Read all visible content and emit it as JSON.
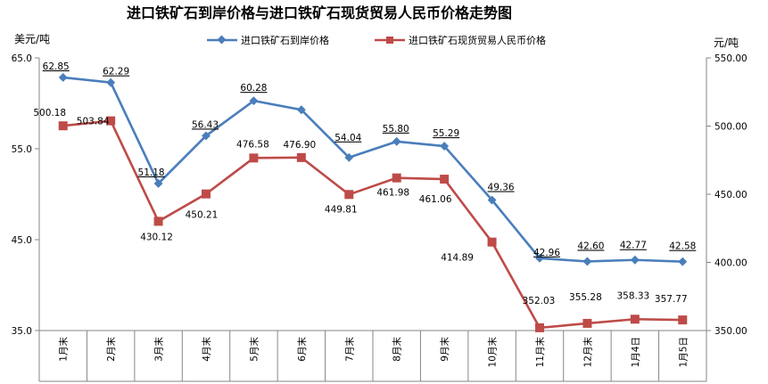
{
  "chart_data": {
    "type": "line",
    "title": "进口铁矿石到岸价格与进口铁矿石现货贸易人民币价格走势图",
    "y_left_label": "美元/吨",
    "y_right_label": "元/吨",
    "categories": [
      "1月末",
      "2月末",
      "3月末",
      "4月末",
      "5月末",
      "6月末",
      "7月末",
      "8月末",
      "9月末",
      "10月末",
      "11月末",
      "12月末",
      "1月4日",
      "1月5日"
    ],
    "y_left": {
      "min": 35,
      "max": 65,
      "ticks": [
        "35.0",
        "45.0",
        "55.0",
        "65.0"
      ]
    },
    "y_right": {
      "min": 350,
      "max": 550,
      "ticks": [
        "350.00",
        "400.00",
        "450.00",
        "500.00",
        "550.00"
      ]
    },
    "grid": false,
    "legend_position": "top",
    "series": [
      {
        "name": "进口铁矿石到岸价格",
        "axis": "left",
        "color": "#4a7ebb",
        "marker": "diamond",
        "values": [
          62.85,
          62.29,
          51.18,
          56.43,
          60.28,
          59.29,
          54.04,
          55.8,
          55.29,
          49.36,
          42.96,
          42.6,
          42.77,
          42.58
        ],
        "labels": [
          "62.85",
          "62.29",
          "51.18",
          "56.43",
          "60.28",
          "",
          "54.04",
          "55.80",
          "55.29",
          "49.36",
          "42.96",
          "42.60",
          "42.77",
          "42.58"
        ]
      },
      {
        "name": "进口铁矿石现货贸易人民币价格",
        "axis": "right",
        "color": "#be4b48",
        "marker": "square",
        "values": [
          500.18,
          503.84,
          430.12,
          450.21,
          476.58,
          476.9,
          449.81,
          461.98,
          461.06,
          414.89,
          352.03,
          355.28,
          358.33,
          357.77
        ],
        "labels": [
          "500.18",
          "503.84",
          "430.12",
          "450.21",
          "476.58",
          "476.90",
          "449.81",
          "461.98",
          "461.06",
          "414.89",
          "352.03",
          "355.28",
          "358.33",
          "357.77"
        ]
      }
    ]
  }
}
